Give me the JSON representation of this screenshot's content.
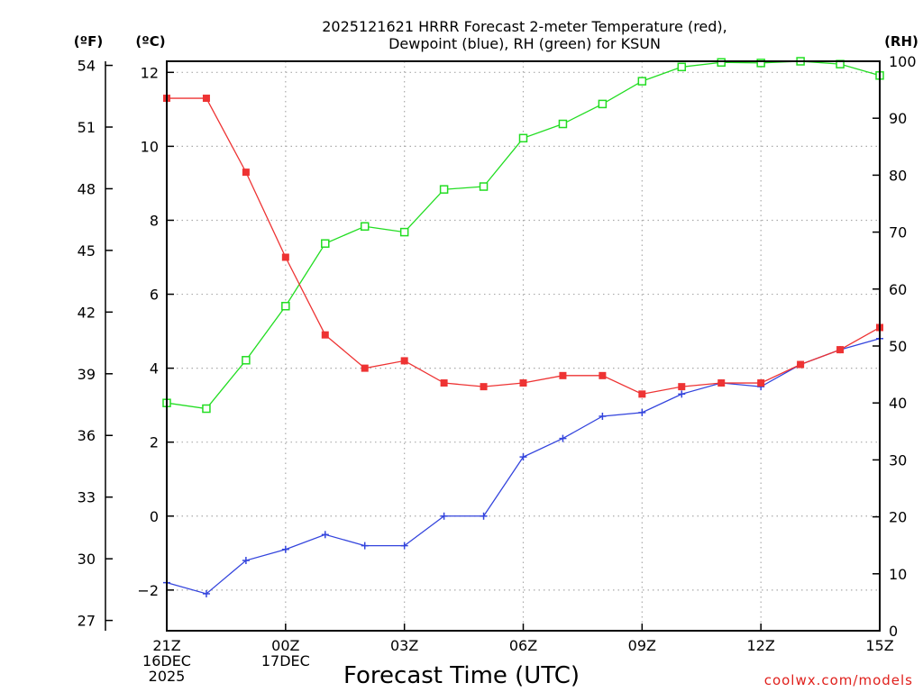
{
  "chart_data": {
    "type": "line",
    "title_lines": [
      "2025121621 HRRR Forecast 2-meter Temperature (red),",
      "Dewpoint (blue), RH (green) for KSUN"
    ],
    "xlabel": "Forecast Time (UTC)",
    "credit": "coolwx.com/models",
    "x_hours": [
      0,
      1,
      2,
      3,
      4,
      5,
      6,
      7,
      8,
      9,
      10,
      11,
      12,
      13,
      14,
      15,
      16,
      17,
      18
    ],
    "x_ticks": [
      {
        "hour": 0,
        "lines": [
          "21Z",
          "16DEC",
          "2025"
        ]
      },
      {
        "hour": 3,
        "lines": [
          "00Z",
          "17DEC"
        ]
      },
      {
        "hour": 6,
        "lines": [
          "03Z"
        ]
      },
      {
        "hour": 9,
        "lines": [
          "06Z"
        ]
      },
      {
        "hour": 12,
        "lines": [
          "09Z"
        ]
      },
      {
        "hour": 15,
        "lines": [
          "12Z"
        ]
      },
      {
        "hour": 18,
        "lines": [
          "15Z"
        ]
      }
    ],
    "xlim": [
      0,
      18
    ],
    "axes": {
      "celsius": {
        "unit_label": "(ºC)",
        "range": [
          -3.1,
          12.3
        ],
        "ticks": [
          -2,
          0,
          2,
          4,
          6,
          8,
          10,
          12
        ]
      },
      "fahrenheit": {
        "unit_label": "(ºF)",
        "range": [
          26.5,
          54.2
        ],
        "ticks": [
          27,
          30,
          33,
          36,
          39,
          42,
          45,
          48,
          51,
          54
        ]
      },
      "rh": {
        "unit_label": "(RH)",
        "range": [
          0,
          100
        ],
        "ticks": [
          0,
          10,
          20,
          30,
          40,
          50,
          60,
          70,
          80,
          90,
          100
        ]
      }
    },
    "series": [
      {
        "name": "2-meter Temperature",
        "axis": "celsius",
        "color": "#ee3333",
        "marker": "filled-square",
        "values": [
          11.3,
          11.3,
          9.3,
          7.0,
          4.9,
          4.0,
          4.2,
          3.6,
          3.5,
          3.6,
          3.8,
          3.8,
          3.3,
          3.5,
          3.6,
          3.6,
          4.1,
          4.5,
          5.1
        ]
      },
      {
        "name": "Dewpoint",
        "axis": "celsius",
        "color": "#3344dd",
        "marker": "plus",
        "values": [
          -1.8,
          -2.1,
          -1.2,
          -0.9,
          -0.5,
          -0.8,
          -0.8,
          0.0,
          0.0,
          1.6,
          2.1,
          2.7,
          2.8,
          3.3,
          3.6,
          3.5,
          4.1,
          4.5,
          4.8
        ]
      },
      {
        "name": "RH",
        "axis": "rh",
        "color": "#22dd22",
        "marker": "hollow-square",
        "values": [
          40.0,
          39.0,
          47.5,
          57.0,
          68.0,
          71.0,
          70.0,
          77.5,
          78.0,
          86.5,
          89.0,
          92.5,
          96.5,
          99.0,
          99.8,
          99.7,
          100.0,
          99.5,
          97.5
        ]
      }
    ]
  }
}
